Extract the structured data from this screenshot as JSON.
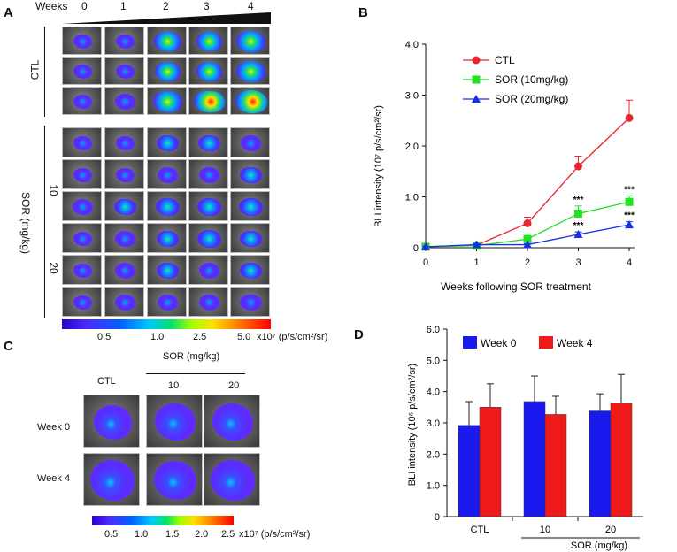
{
  "panel_a": {
    "letter": "A",
    "weeks_label": "Weeks",
    "week_ticks": [
      "0",
      "1",
      "2",
      "3",
      "4"
    ],
    "group_ctl": "CTL",
    "group_sor": "SOR (mg/kg)",
    "dose_10": "10",
    "dose_20": "20",
    "colorbar_ticks": [
      "0.5",
      "1.0",
      "2.5",
      "5.0"
    ],
    "colorbar_unit": "x10⁷ (p/s/cm²/sr)"
  },
  "panel_c": {
    "letter": "C",
    "ctl_label": "CTL",
    "sor_label": "SOR (mg/kg)",
    "dose_10": "10",
    "dose_20": "20",
    "row_week0": "Week 0",
    "row_week4": "Week 4",
    "colorbar_ticks": [
      "0.5",
      "1.0",
      "1.5",
      "2.0",
      "2.5"
    ],
    "colorbar_unit": "x10⁷ (p/s/cm²/sr)"
  },
  "chart_data": [
    {
      "panel": "B",
      "type": "line",
      "title": "",
      "xlabel": "Weeks following SOR treatment",
      "ylabel": "BLI intensity (10⁷ p/s/cm²/sr)",
      "x": [
        0,
        1,
        2,
        3,
        4
      ],
      "xlim": [
        0,
        4
      ],
      "ylim": [
        0,
        4.0
      ],
      "yticks": [
        "0",
        "1.0",
        "2.0",
        "3.0",
        "4.0"
      ],
      "legend_position": "top-left",
      "series": [
        {
          "name": "CTL",
          "color": "#e8252c",
          "marker": "circle",
          "values": [
            0.02,
            0.05,
            0.48,
            1.6,
            2.55
          ],
          "errors": [
            0.02,
            0.05,
            0.12,
            0.2,
            0.35
          ],
          "stars": [
            "",
            "",
            "",
            "",
            ""
          ]
        },
        {
          "name": "SOR (10mg/kg)",
          "color": "#22e022",
          "marker": "square",
          "values": [
            0.02,
            0.04,
            0.17,
            0.67,
            0.9
          ],
          "errors": [
            0.01,
            0.03,
            0.1,
            0.15,
            0.12
          ],
          "stars": [
            "",
            "",
            "",
            "***",
            "***"
          ]
        },
        {
          "name": "SOR (20mg/kg)",
          "color": "#1a2ee8",
          "marker": "triangle",
          "values": [
            0.02,
            0.06,
            0.06,
            0.26,
            0.45
          ],
          "errors": [
            0.01,
            0.02,
            0.02,
            0.05,
            0.06
          ],
          "stars": [
            "",
            "",
            "",
            "***",
            "***"
          ]
        }
      ]
    },
    {
      "panel": "D",
      "type": "bar",
      "title": "",
      "xlabel": "SOR (mg/kg)",
      "ylabel": "BLI intensity (10⁶ p/s/cm²/sr)",
      "categories": [
        "CTL",
        "10",
        "20"
      ],
      "ylim": [
        0,
        6.0
      ],
      "yticks": [
        "0",
        "1.0",
        "2.0",
        "3.0",
        "4.0",
        "5.0",
        "6.0"
      ],
      "legend_position": "top",
      "series": [
        {
          "name": "Week 0",
          "color": "#1a1aee",
          "values": [
            2.92,
            3.68,
            3.38
          ],
          "errors": [
            0.76,
            0.82,
            0.55
          ]
        },
        {
          "name": "Week 4",
          "color": "#ee1a1a",
          "values": [
            3.5,
            3.27,
            3.63
          ],
          "errors": [
            0.75,
            0.58,
            0.92
          ]
        }
      ]
    }
  ]
}
